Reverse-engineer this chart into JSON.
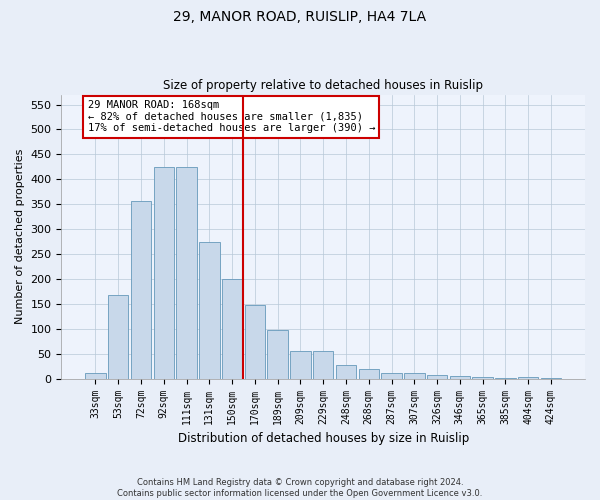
{
  "title_line1": "29, MANOR ROAD, RUISLIP, HA4 7LA",
  "title_line2": "Size of property relative to detached houses in Ruislip",
  "xlabel": "Distribution of detached houses by size in Ruislip",
  "ylabel": "Number of detached properties",
  "categories": [
    "33sqm",
    "53sqm",
    "72sqm",
    "92sqm",
    "111sqm",
    "131sqm",
    "150sqm",
    "170sqm",
    "189sqm",
    "209sqm",
    "229sqm",
    "248sqm",
    "268sqm",
    "287sqm",
    "307sqm",
    "326sqm",
    "346sqm",
    "365sqm",
    "385sqm",
    "404sqm",
    "424sqm"
  ],
  "values": [
    12,
    168,
    357,
    425,
    425,
    275,
    200,
    148,
    97,
    55,
    55,
    27,
    20,
    11,
    12,
    7,
    5,
    3,
    1,
    4,
    2
  ],
  "bar_color": "#c8d8ea",
  "bar_edge_color": "#6699bb",
  "vline_x_index": 7,
  "vline_color": "#cc0000",
  "annotation_text": "29 MANOR ROAD: 168sqm\n← 82% of detached houses are smaller (1,835)\n17% of semi-detached houses are larger (390) →",
  "annotation_box_color": "#ffffff",
  "annotation_box_edge": "#cc0000",
  "ylim": [
    0,
    570
  ],
  "yticks": [
    0,
    50,
    100,
    150,
    200,
    250,
    300,
    350,
    400,
    450,
    500,
    550
  ],
  "footnote": "Contains HM Land Registry data © Crown copyright and database right 2024.\nContains public sector information licensed under the Open Government Licence v3.0.",
  "bg_color": "#e8eef8",
  "plot_bg_color": "#eef3fc"
}
